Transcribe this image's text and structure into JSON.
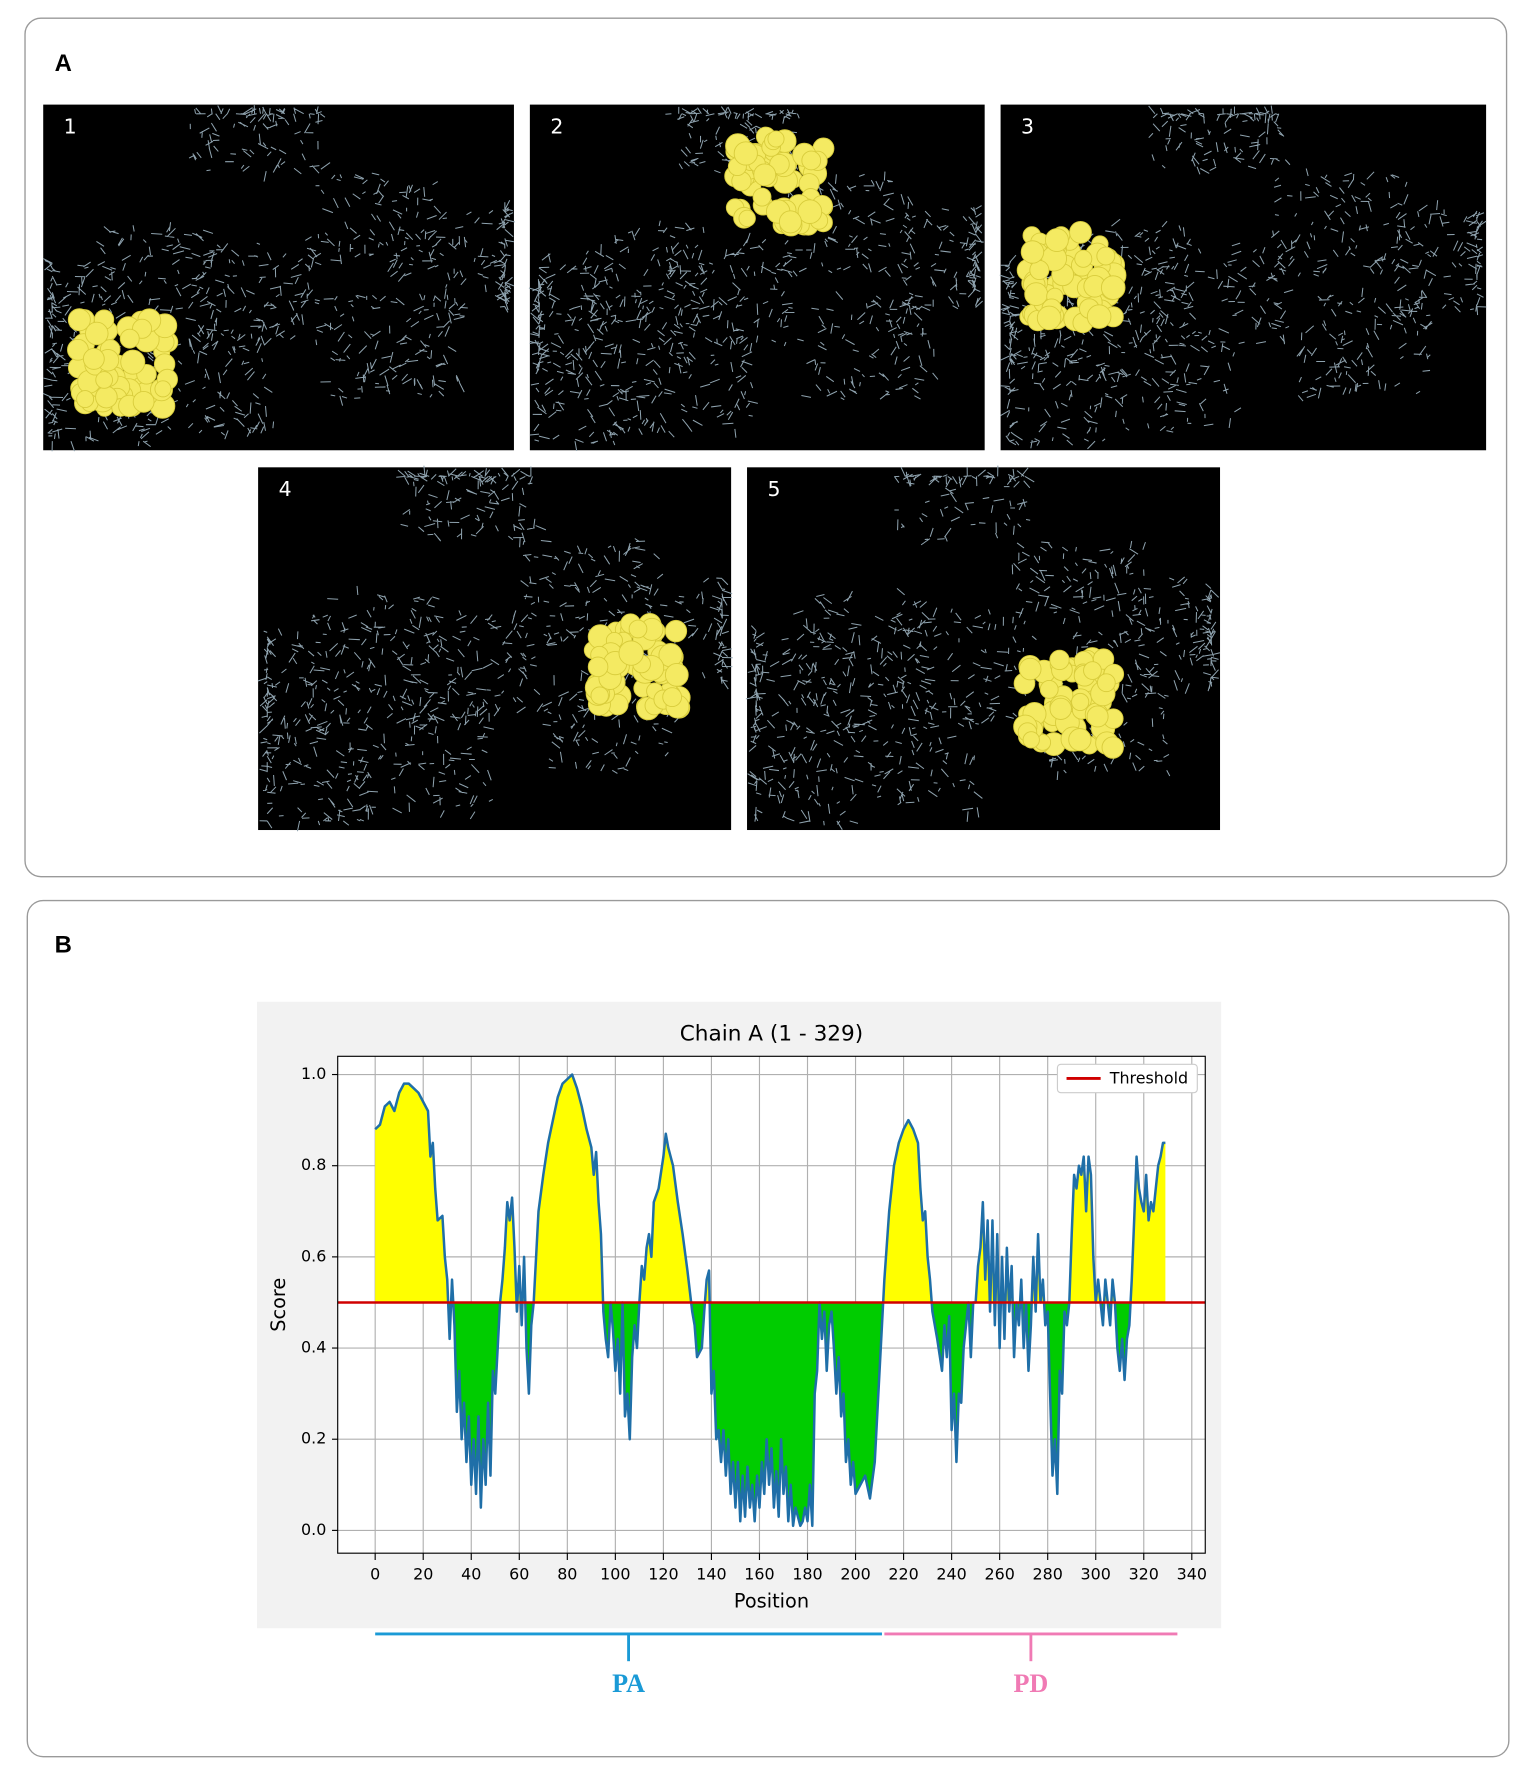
{
  "panel_a": {
    "label": "A",
    "images": [
      "1",
      "2",
      "3",
      "4",
      "5"
    ]
  },
  "panel_b": {
    "label": "B"
  },
  "chart_data": {
    "type": "area",
    "title": "Chain A (1 - 329)",
    "xlabel": "Position",
    "ylabel": "Score",
    "x": [
      0,
      2,
      4,
      6,
      8,
      10,
      12,
      14,
      16,
      18,
      20,
      22,
      23,
      24,
      25,
      26,
      28,
      29,
      30,
      31,
      32,
      33,
      34,
      35,
      36,
      37,
      38,
      39,
      40,
      41,
      42,
      43,
      44,
      45,
      46,
      47,
      48,
      49,
      50,
      51,
      52,
      53,
      54,
      55,
      56,
      57,
      58,
      59,
      60,
      61,
      62,
      63,
      64,
      65,
      66,
      68,
      70,
      72,
      74,
      76,
      78,
      80,
      82,
      84,
      86,
      88,
      90,
      91,
      92,
      93,
      94,
      95,
      96,
      97,
      98,
      99,
      100,
      101,
      102,
      103,
      104,
      105,
      106,
      107,
      108,
      109,
      110,
      111,
      112,
      113,
      114,
      115,
      116,
      118,
      120,
      121,
      122,
      124,
      126,
      128,
      130,
      132,
      133,
      134,
      136,
      137,
      138,
      139,
      140,
      141,
      142,
      143,
      144,
      145,
      146,
      147,
      148,
      149,
      150,
      151,
      152,
      153,
      154,
      155,
      156,
      157,
      158,
      159,
      160,
      161,
      162,
      163,
      164,
      165,
      166,
      167,
      168,
      169,
      170,
      171,
      172,
      173,
      174,
      175,
      176,
      177,
      178,
      179,
      180,
      181,
      182,
      183,
      184,
      185,
      186,
      187,
      188,
      189,
      190,
      191,
      192,
      193,
      194,
      195,
      196,
      197,
      198,
      199,
      200,
      202,
      204,
      206,
      208,
      210,
      212,
      214,
      216,
      218,
      220,
      222,
      224,
      226,
      227,
      228,
      229,
      230,
      231,
      232,
      234,
      236,
      237,
      238,
      239,
      240,
      241,
      242,
      243,
      244,
      245,
      246,
      247,
      248,
      249,
      250,
      251,
      252,
      253,
      254,
      255,
      256,
      257,
      258,
      259,
      260,
      261,
      262,
      263,
      264,
      265,
      266,
      267,
      268,
      269,
      270,
      271,
      272,
      273,
      274,
      275,
      276,
      277,
      278,
      279,
      280,
      281,
      282,
      283,
      284,
      285,
      286,
      287,
      288,
      289,
      290,
      291,
      292,
      293,
      294,
      295,
      296,
      297,
      298,
      299,
      300,
      301,
      302,
      303,
      304,
      305,
      306,
      307,
      308,
      309,
      310,
      311,
      312,
      313,
      314,
      315,
      316,
      317,
      318,
      319,
      320,
      321,
      322,
      323,
      324,
      325,
      326,
      327,
      328,
      329
    ],
    "series": [
      {
        "color": "#1f6fa8",
        "values": [
          0.88,
          0.89,
          0.93,
          0.94,
          0.92,
          0.96,
          0.98,
          0.98,
          0.97,
          0.96,
          0.94,
          0.92,
          0.82,
          0.85,
          0.75,
          0.68,
          0.69,
          0.6,
          0.55,
          0.42,
          0.55,
          0.45,
          0.26,
          0.35,
          0.2,
          0.28,
          0.15,
          0.25,
          0.1,
          0.2,
          0.08,
          0.25,
          0.05,
          0.2,
          0.1,
          0.28,
          0.12,
          0.35,
          0.3,
          0.4,
          0.5,
          0.55,
          0.62,
          0.72,
          0.68,
          0.73,
          0.62,
          0.48,
          0.58,
          0.45,
          0.6,
          0.4,
          0.3,
          0.45,
          0.5,
          0.7,
          0.78,
          0.85,
          0.9,
          0.95,
          0.98,
          0.99,
          1.0,
          0.97,
          0.93,
          0.88,
          0.84,
          0.78,
          0.83,
          0.72,
          0.65,
          0.48,
          0.42,
          0.38,
          0.5,
          0.44,
          0.35,
          0.42,
          0.3,
          0.5,
          0.25,
          0.3,
          0.2,
          0.38,
          0.45,
          0.4,
          0.5,
          0.58,
          0.55,
          0.62,
          0.65,
          0.6,
          0.72,
          0.75,
          0.82,
          0.87,
          0.84,
          0.8,
          0.72,
          0.65,
          0.57,
          0.48,
          0.45,
          0.38,
          0.4,
          0.48,
          0.55,
          0.57,
          0.3,
          0.35,
          0.2,
          0.22,
          0.15,
          0.22,
          0.12,
          0.2,
          0.08,
          0.15,
          0.05,
          0.15,
          0.02,
          0.12,
          0.03,
          0.14,
          0.05,
          0.1,
          0.02,
          0.12,
          0.05,
          0.15,
          0.08,
          0.2,
          0.1,
          0.18,
          0.05,
          0.13,
          0.03,
          0.2,
          0.08,
          0.14,
          0.02,
          0.1,
          0.01,
          0.05,
          0.03,
          0.01,
          0.02,
          0.05,
          0.02,
          0.1,
          0.01,
          0.3,
          0.35,
          0.5,
          0.42,
          0.48,
          0.35,
          0.45,
          0.48,
          0.4,
          0.3,
          0.38,
          0.25,
          0.3,
          0.15,
          0.2,
          0.1,
          0.15,
          0.08,
          0.1,
          0.12,
          0.07,
          0.15,
          0.35,
          0.55,
          0.7,
          0.8,
          0.85,
          0.88,
          0.9,
          0.88,
          0.85,
          0.75,
          0.68,
          0.7,
          0.6,
          0.55,
          0.48,
          0.42,
          0.35,
          0.45,
          0.38,
          0.47,
          0.22,
          0.3,
          0.15,
          0.3,
          0.28,
          0.4,
          0.45,
          0.5,
          0.38,
          0.5,
          0.5,
          0.58,
          0.62,
          0.72,
          0.55,
          0.68,
          0.48,
          0.68,
          0.45,
          0.65,
          0.4,
          0.6,
          0.42,
          0.62,
          0.48,
          0.58,
          0.38,
          0.5,
          0.45,
          0.55,
          0.4,
          0.5,
          0.35,
          0.45,
          0.6,
          0.48,
          0.65,
          0.5,
          0.55,
          0.45,
          0.48,
          0.3,
          0.12,
          0.2,
          0.08,
          0.35,
          0.3,
          0.48,
          0.45,
          0.5,
          0.65,
          0.78,
          0.75,
          0.8,
          0.78,
          0.82,
          0.7,
          0.82,
          0.78,
          0.6,
          0.5,
          0.55,
          0.5,
          0.45,
          0.55,
          0.5,
          0.45,
          0.55,
          0.5,
          0.4,
          0.35,
          0.42,
          0.33,
          0.42,
          0.45,
          0.55,
          0.68,
          0.82,
          0.75,
          0.72,
          0.7,
          0.78,
          0.68,
          0.72,
          0.7,
          0.75,
          0.8,
          0.82,
          0.85,
          0.85
        ]
      }
    ],
    "threshold": {
      "name": "Threshold",
      "value": 0.5,
      "color": "#d00000"
    },
    "above_color": "#ffff00",
    "below_color": "#00cc00",
    "xlim": [
      -15.6,
      345.6
    ],
    "ylim": [
      -0.05,
      1.04
    ],
    "xticks": [
      0,
      20,
      40,
      60,
      80,
      100,
      120,
      140,
      160,
      180,
      200,
      220,
      240,
      260,
      280,
      300,
      320,
      340
    ],
    "yticks": [
      {
        "value": 0,
        "label": "0.0"
      },
      0.2,
      0.4,
      0.6,
      0.8,
      {
        "value": 1,
        "label": "1.0"
      }
    ],
    "grid": true,
    "legend": "upper right",
    "domains": [
      {
        "label": "PA",
        "start": 0,
        "end": 211,
        "color": "#1a9ad6"
      },
      {
        "label": "PD",
        "start": 212,
        "end": 334,
        "color": "#f07ab4"
      }
    ]
  }
}
